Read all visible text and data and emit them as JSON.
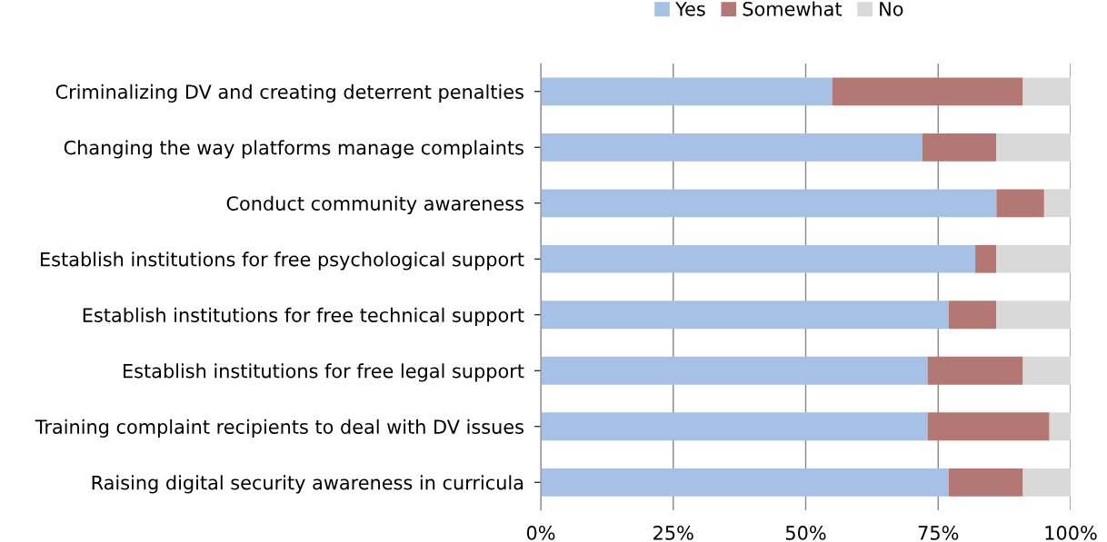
{
  "chart_data": {
    "type": "bar",
    "orientation": "horizontal",
    "stacked": true,
    "categories": [
      "Criminalizing DV and creating deterrent penalties",
      "Changing the way platforms manage complaints",
      "Conduct community awareness",
      "Establish institutions for free psychological support",
      "Establish institutions for free technical support",
      "Establish institutions for free legal support",
      "Training complaint recipients to deal with DV issues",
      "Raising digital security awareness in curricula"
    ],
    "series": [
      {
        "name": "Yes",
        "color": "#a6c1e5",
        "values": [
          55,
          72,
          86,
          82,
          77,
          73,
          73,
          77
        ]
      },
      {
        "name": "Somewhat",
        "color": "#b47874",
        "values": [
          36,
          14,
          9,
          4,
          9,
          18,
          23,
          14
        ]
      },
      {
        "name": "No",
        "color": "#d9d9d9",
        "values": [
          9,
          14,
          5,
          14,
          14,
          9,
          4,
          9
        ]
      }
    ],
    "xlim": [
      0,
      100
    ],
    "xticks": [
      {
        "value": 0,
        "label": "0%"
      },
      {
        "value": 25,
        "label": "25%"
      },
      {
        "value": 50,
        "label": "50%"
      },
      {
        "value": 75,
        "label": "75%"
      },
      {
        "value": 100,
        "label": "100%"
      }
    ],
    "grid": "x",
    "legend": "top"
  }
}
